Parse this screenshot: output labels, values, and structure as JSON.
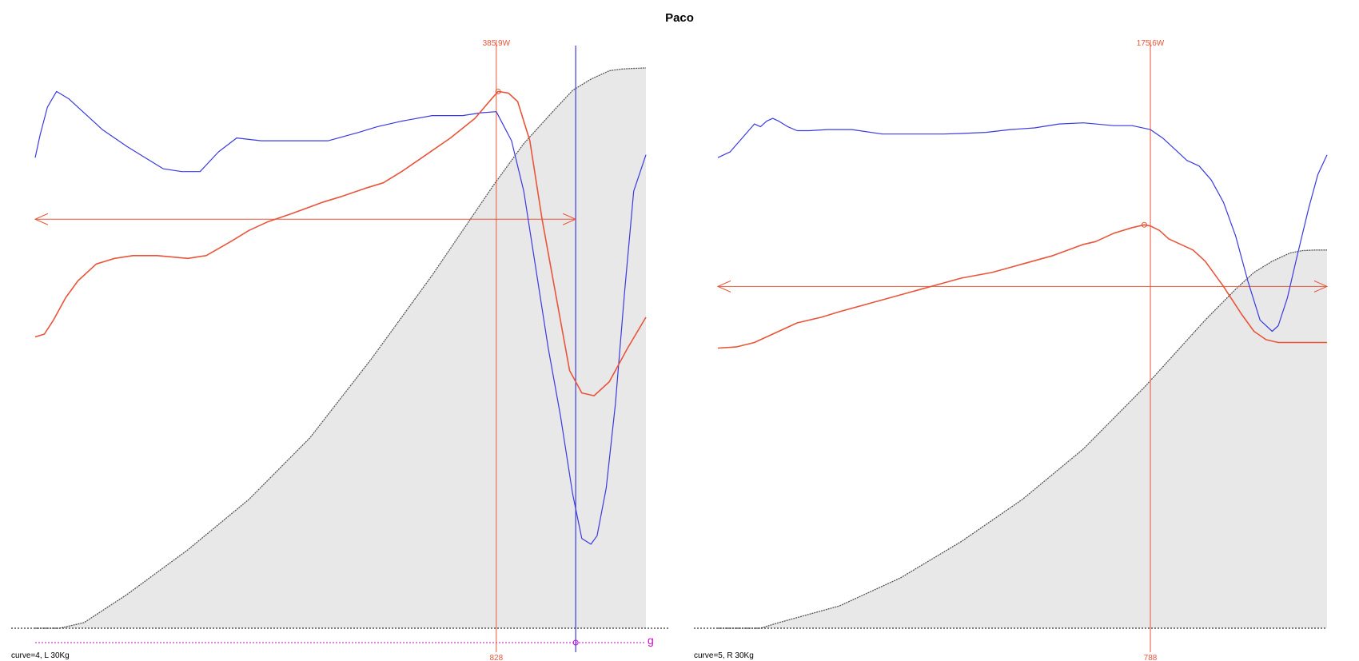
{
  "page": {
    "title": "Paco"
  },
  "colors": {
    "blue": "#3a3ae0",
    "red": "#e8553a",
    "magenta": "#d400d4",
    "fill": "#e8e8e8",
    "cumulative": "#555555"
  },
  "chart_data": [
    {
      "type": "line",
      "footer_label": "curve=4, L 30Kg",
      "peak_power_label": "385,9W",
      "peak_x_label": "828",
      "g_label": "g",
      "xlim": [
        0,
        1000
      ],
      "ylim": [
        0,
        100
      ],
      "peak_x": 755,
      "g_marker_x": 885,
      "arrow": {
        "y": 73,
        "from_x": 0,
        "to_x": 885
      },
      "series": [
        {
          "color": "blue",
          "role": "speed",
          "x": [
            0,
            8,
            20,
            35,
            55,
            80,
            110,
            150,
            180,
            210,
            240,
            270,
            300,
            330,
            370,
            420,
            480,
            530,
            560,
            600,
            650,
            700,
            730,
            755,
            780,
            800,
            820,
            840,
            860,
            880,
            895,
            910,
            920,
            935,
            950,
            965,
            980,
            1000
          ],
          "y": [
            84,
            88,
            93,
            95.8,
            94.5,
            92,
            89,
            86,
            84,
            82,
            81.5,
            81.5,
            85,
            87.5,
            87,
            87,
            87,
            88.5,
            89.5,
            90.5,
            91.5,
            91.5,
            92,
            92.2,
            87,
            78,
            64,
            50,
            38,
            24,
            16,
            15,
            16.5,
            25,
            40,
            60,
            78,
            84.5
          ]
        },
        {
          "color": "red",
          "role": "power",
          "x": [
            0,
            15,
            30,
            50,
            70,
            100,
            130,
            160,
            200,
            250,
            280,
            320,
            350,
            380,
            420,
            470,
            500,
            540,
            570,
            600,
            640,
            680,
            720,
            745,
            758,
            775,
            790,
            810,
            830,
            855,
            875,
            895,
            915,
            940,
            970,
            1000
          ],
          "y": [
            52,
            52.5,
            55,
            59,
            62,
            65,
            66,
            66.5,
            66.5,
            66,
            66.5,
            69,
            71,
            72.5,
            74,
            76,
            77,
            78.5,
            79.5,
            81.5,
            84.5,
            87.5,
            91,
            94.2,
            95.8,
            95.5,
            94,
            87,
            73,
            58,
            46,
            42,
            41.5,
            44,
            50,
            55.5
          ]
        }
      ],
      "cumulative": {
        "x": [
          0,
          40,
          60,
          80,
          150,
          250,
          350,
          450,
          550,
          650,
          700,
          750,
          800,
          850,
          880,
          910,
          940,
          960,
          975,
          1000
        ],
        "y": [
          0,
          0,
          0.5,
          1,
          6,
          14,
          23,
          34,
          48,
          63,
          71,
          79,
          86.5,
          92.5,
          96,
          98,
          99.5,
          99.8,
          99.9,
          100
        ]
      }
    },
    {
      "type": "line",
      "footer_label": "curve=5, R 30Kg",
      "peak_power_label": "175,6W",
      "peak_x_label": "788",
      "xlim": [
        0,
        1000
      ],
      "ylim": [
        0,
        100
      ],
      "peak_x": 710,
      "arrow": {
        "y": 61,
        "from_x": 0,
        "to_x": 1000
      },
      "series": [
        {
          "color": "blue",
          "role": "speed",
          "x": [
            0,
            20,
            40,
            60,
            70,
            80,
            90,
            100,
            115,
            130,
            150,
            180,
            220,
            270,
            320,
            370,
            400,
            440,
            480,
            520,
            560,
            600,
            650,
            680,
            710,
            730,
            750,
            770,
            790,
            810,
            830,
            850,
            870,
            890,
            910,
            920,
            935,
            950,
            970,
            985,
            1000
          ],
          "y": [
            84,
            85,
            87.5,
            90,
            89.5,
            90.5,
            91,
            90.5,
            89.5,
            88.8,
            88.8,
            89,
            89,
            88.2,
            88.2,
            88.2,
            88.3,
            88.5,
            89,
            89.3,
            90,
            90.2,
            89.7,
            89.7,
            89,
            87.5,
            85.5,
            83.5,
            82.5,
            80,
            76,
            70,
            62,
            55,
            53,
            54,
            59,
            66,
            75,
            81,
            84.5
          ]
        },
        {
          "color": "red",
          "role": "power",
          "x": [
            0,
            30,
            60,
            100,
            130,
            170,
            200,
            250,
            300,
            350,
            400,
            450,
            500,
            550,
            600,
            620,
            650,
            680,
            700,
            710,
            725,
            740,
            760,
            780,
            800,
            830,
            860,
            880,
            900,
            920,
            950,
            980,
            1000
          ],
          "y": [
            50,
            50.2,
            51,
            53,
            54.5,
            55.5,
            56.5,
            58,
            59.5,
            61,
            62.5,
            63.5,
            65,
            66.5,
            68.5,
            69,
            70.5,
            71.5,
            72,
            71.8,
            71,
            69.5,
            68.5,
            67.5,
            65.5,
            61,
            56,
            53,
            51.5,
            51,
            51,
            51,
            51
          ]
        }
      ],
      "cumulative": {
        "x": [
          0,
          70,
          100,
          150,
          200,
          300,
          400,
          500,
          600,
          700,
          750,
          800,
          850,
          880,
          910,
          940,
          960,
          980,
          1000
        ],
        "y": [
          0,
          0,
          1,
          2.5,
          4,
          9,
          15.5,
          23,
          32,
          43,
          49,
          55,
          60.5,
          63.5,
          65.5,
          67,
          67.4,
          67.5,
          67.5
        ]
      }
    }
  ]
}
